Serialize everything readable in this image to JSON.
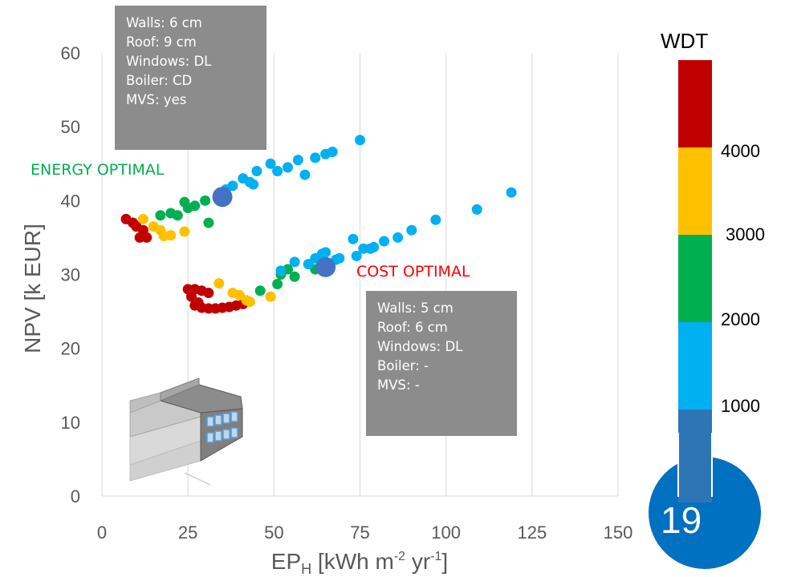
{
  "chart_data": {
    "type": "scatter",
    "xlabel_main": "EP",
    "xlabel_sub": "H",
    "xlabel_unit_a": " [kWh m",
    "xlabel_sup1": "-2",
    "xlabel_unit_b": " yr",
    "xlabel_sup2": "-1",
    "xlabel_end": "]",
    "ylabel": "NPV [k EUR]",
    "xlim": [
      0,
      150
    ],
    "ylim": [
      0,
      60
    ],
    "xticks": [
      "0",
      "25",
      "50",
      "75",
      "100",
      "125",
      "150"
    ],
    "yticks": [
      "0",
      "10",
      "20",
      "30",
      "40",
      "50",
      "60"
    ],
    "grid": "vertical",
    "series": [
      {
        "color": "#c00000",
        "points": [
          [
            7,
            37.5
          ],
          [
            9,
            37
          ],
          [
            10,
            36.5
          ],
          [
            12,
            36
          ],
          [
            11,
            35
          ],
          [
            13,
            35
          ],
          [
            25,
            28
          ],
          [
            27,
            28
          ],
          [
            29,
            27.8
          ],
          [
            31,
            27.5
          ],
          [
            26,
            27
          ],
          [
            28,
            26.2
          ],
          [
            27,
            25.8
          ],
          [
            29,
            25.5
          ],
          [
            31,
            25.4
          ],
          [
            33,
            25.4
          ],
          [
            35,
            25.5
          ],
          [
            37,
            25.6
          ],
          [
            39,
            25.8
          ],
          [
            41,
            26
          ]
        ]
      },
      {
        "color": "#ffc000",
        "points": [
          [
            12,
            37.5
          ],
          [
            15,
            36.5
          ],
          [
            17,
            36
          ],
          [
            18,
            35.2
          ],
          [
            20,
            35.3
          ],
          [
            24,
            35.8
          ],
          [
            34,
            28.8
          ],
          [
            38,
            27.5
          ],
          [
            40,
            27.2
          ],
          [
            42,
            26.5
          ],
          [
            43,
            26.3
          ],
          [
            49,
            27
          ]
        ]
      },
      {
        "color": "#00b050",
        "points": [
          [
            17,
            38
          ],
          [
            20,
            38.3
          ],
          [
            22,
            38
          ],
          [
            24,
            39.8
          ],
          [
            25,
            39
          ],
          [
            27,
            39.3
          ],
          [
            30,
            40
          ],
          [
            31,
            37
          ],
          [
            46,
            27.8
          ],
          [
            51,
            28.7
          ],
          [
            52,
            30
          ],
          [
            54,
            30.7
          ],
          [
            56,
            29.7
          ],
          [
            62,
            30.7
          ]
        ]
      },
      {
        "color": "#00b0f0",
        "points": [
          [
            36,
            41.5
          ],
          [
            38,
            42
          ],
          [
            41,
            43
          ],
          [
            43,
            42.5
          ],
          [
            44,
            42.2
          ],
          [
            45,
            44
          ],
          [
            49,
            45
          ],
          [
            51,
            44
          ],
          [
            54,
            44.5
          ],
          [
            57,
            45.5
          ],
          [
            59,
            43.5
          ],
          [
            62,
            45.8
          ],
          [
            65,
            46.3
          ],
          [
            67,
            46.6
          ],
          [
            75,
            48.2
          ],
          [
            52,
            30.5
          ],
          [
            56,
            31.7
          ],
          [
            60,
            31.4
          ],
          [
            62,
            32.2
          ],
          [
            64,
            32.8
          ],
          [
            65,
            33
          ],
          [
            68,
            32
          ],
          [
            69,
            32.2
          ],
          [
            73,
            34.8
          ],
          [
            74,
            32.5
          ],
          [
            76,
            33.5
          ],
          [
            78,
            33.5
          ],
          [
            79,
            33.7
          ],
          [
            82,
            34.5
          ],
          [
            86,
            35
          ],
          [
            90,
            36
          ],
          [
            97,
            37.4
          ],
          [
            109,
            38.8
          ],
          [
            119,
            41.1
          ]
        ]
      }
    ],
    "optimal_points": [
      {
        "name": "energy",
        "x": 35,
        "y": 40.5,
        "color": "#4472c4"
      },
      {
        "name": "cost",
        "x": 65,
        "y": 31,
        "color": "#4472c4"
      }
    ]
  },
  "labels": {
    "energy_optimal": "ENERGY OPTIMAL",
    "cost_optimal": "COST OPTIMAL",
    "energy_color": "#00b050",
    "cost_color": "#ff0000"
  },
  "callout_energy": [
    "Walls: 6 cm",
    "Roof: 9 cm",
    "Windows: DL",
    "Boiler: CD",
    "MVS: yes"
  ],
  "callout_cost": [
    "Walls: 5 cm",
    "Roof: 6 cm",
    "Windows: DL",
    "Boiler: -",
    "MVS: -"
  ],
  "color_scale": {
    "title": "WDT",
    "ticks": [
      "4000",
      "3000",
      "2000",
      "1000"
    ],
    "bands": [
      "#c00000",
      "#ffc000",
      "#00b050",
      "#00b0f0",
      "#2e75b6"
    ]
  },
  "badge": {
    "number": "19",
    "color": "#0070c0"
  }
}
